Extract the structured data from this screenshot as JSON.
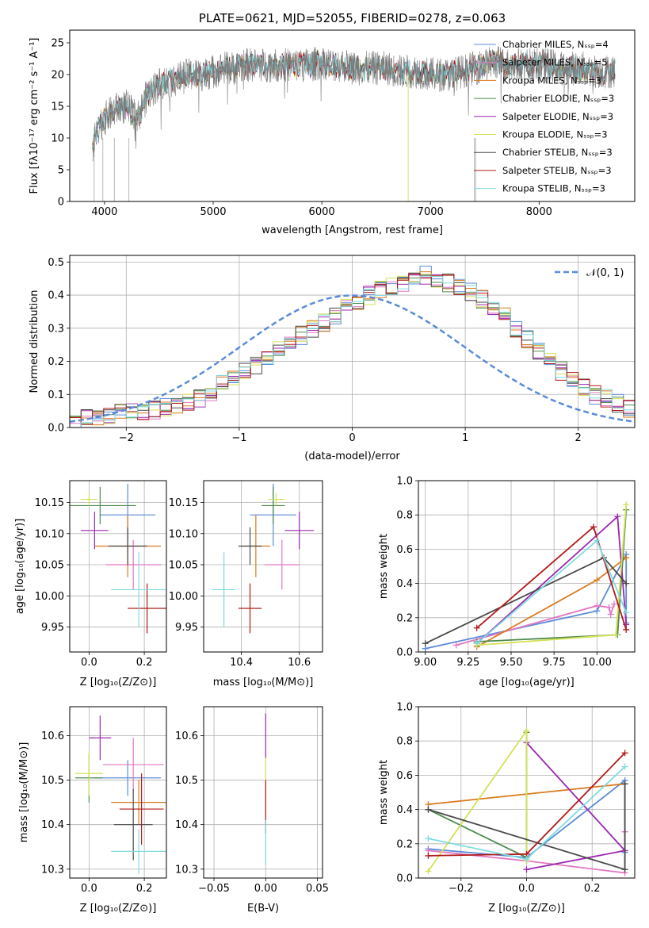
{
  "chart_data": [
    {
      "type": "line",
      "title": "PLATE=0621, MJD=52055, FIBERID=0278, z=0.063",
      "xlabel": "wavelength [Angstrom, rest frame]",
      "ylabel": "Flux [fλ10⁻¹⁷ erg cm⁻² s⁻¹ A⁻¹]",
      "xlim": [
        3680,
        8880
      ],
      "ylim": [
        0,
        27
      ],
      "xticks": [
        "4000",
        "5000",
        "6000",
        "7000",
        "8000"
      ],
      "yticks": [
        "0",
        "5",
        "10",
        "15",
        "20",
        "25"
      ],
      "legend_location": "upper right",
      "series": [
        {
          "name": "Chabrier MILES, N_SSP=4",
          "color": "#5b8bd9"
        },
        {
          "name": "Salpeter MILES, N_SSP=5",
          "color": "#e377c2"
        },
        {
          "name": "Kroupa MILES, N_SSP=3",
          "color": "#d97a1c"
        },
        {
          "name": "Chabrier ELODIE, N_SSP=3",
          "color": "#4e8a4e"
        },
        {
          "name": "Salpeter ELODIE, N_SSP=3",
          "color": "#9b27b0"
        },
        {
          "name": "Kroupa ELODIE, N_SSP=3",
          "color": "#d4e157"
        },
        {
          "name": "Chabrier STELIB, N_SSP=3",
          "color": "#4a4a4a"
        },
        {
          "name": "Salpeter STELIB, N_SSP=3",
          "color": "#b21a1a"
        },
        {
          "name": "Kroupa STELIB, N_SSP=3",
          "color": "#7fdbe0"
        }
      ],
      "data_color": "#7a7a7a",
      "continuum": [
        [
          3880,
          8
        ],
        [
          3950,
          12
        ],
        [
          4000,
          13
        ],
        [
          4100,
          14.5
        ],
        [
          4200,
          15
        ],
        [
          4300,
          13
        ],
        [
          4400,
          17
        ],
        [
          4500,
          18.5
        ],
        [
          4600,
          19
        ],
        [
          4700,
          19.5
        ],
        [
          4800,
          20
        ],
        [
          4900,
          20
        ],
        [
          5000,
          20.5
        ],
        [
          5100,
          21
        ],
        [
          5200,
          21
        ],
        [
          5300,
          21.5
        ],
        [
          5400,
          21.5
        ],
        [
          5500,
          21.5
        ],
        [
          5600,
          21.5
        ],
        [
          5700,
          21.5
        ],
        [
          5800,
          21.5
        ],
        [
          5900,
          21.5
        ],
        [
          6000,
          22
        ],
        [
          6100,
          21.5
        ],
        [
          6200,
          21.5
        ],
        [
          6300,
          21
        ],
        [
          6400,
          21
        ],
        [
          6500,
          21
        ],
        [
          6600,
          21
        ],
        [
          6700,
          20.5
        ],
        [
          6800,
          20.5
        ],
        [
          6900,
          20.5
        ],
        [
          7000,
          20
        ],
        [
          7100,
          20
        ],
        [
          7200,
          20
        ],
        [
          7300,
          20.5
        ],
        [
          7400,
          21
        ],
        [
          7500,
          21.5
        ],
        [
          7600,
          22
        ],
        [
          7700,
          21.5
        ],
        [
          7800,
          21.5
        ],
        [
          7900,
          21.5
        ],
        [
          8000,
          21.5
        ],
        [
          8100,
          21.5
        ],
        [
          8200,
          21
        ],
        [
          8300,
          21
        ],
        [
          8400,
          21
        ],
        [
          8500,
          20.5
        ],
        [
          8600,
          20.5
        ],
        [
          8700,
          20.5
        ]
      ]
    },
    {
      "type": "bar",
      "xlabel": "(data-model)/error",
      "ylabel": "Normed distribution",
      "xlim": [
        -2.5,
        2.5
      ],
      "ylim": [
        0,
        0.52
      ],
      "xticks": [
        "−2",
        "−1",
        "0",
        "1",
        "2"
      ],
      "yticks": [
        "0.0",
        "0.1",
        "0.2",
        "0.3",
        "0.4",
        "0.5"
      ],
      "bin_width": 0.1,
      "bins_from": -2.5,
      "reference_curve": {
        "name": "𝒩(0, 1)",
        "color": "#5b8bd9",
        "style": "dashed"
      },
      "base_hist": [
        0.02,
        0.03,
        0.03,
        0.04,
        0.04,
        0.05,
        0.05,
        0.05,
        0.06,
        0.07,
        0.08,
        0.09,
        0.11,
        0.13,
        0.15,
        0.17,
        0.19,
        0.22,
        0.24,
        0.26,
        0.28,
        0.3,
        0.32,
        0.34,
        0.36,
        0.38,
        0.4,
        0.42,
        0.43,
        0.44,
        0.45,
        0.46,
        0.45,
        0.44,
        0.43,
        0.41,
        0.39,
        0.36,
        0.34,
        0.3,
        0.27,
        0.23,
        0.2,
        0.17,
        0.14,
        0.12,
        0.1,
        0.09,
        0.07,
        0.06,
        0.05,
        0.04,
        0.03,
        0.03,
        0.02
      ]
    },
    {
      "type": "scatter",
      "xlabel": "Z [log₁₀(Z/Z⊙)]",
      "ylabel": "age  [log₁₀(age/yr)]",
      "xlim": [
        -0.07,
        0.28
      ],
      "ylim": [
        9.91,
        10.185
      ],
      "xticks": [
        "0.0",
        "0.2"
      ],
      "yticks": [
        "9.95",
        "10.00",
        "10.05",
        "10.10",
        "10.15"
      ],
      "points": [
        {
          "x": 0.14,
          "y": 10.13,
          "xerr": 0.1,
          "yerr": 0.05,
          "color": "#5b8bd9"
        },
        {
          "x": 0.16,
          "y": 10.05,
          "xerr": 0.1,
          "yerr": 0.04,
          "color": "#e377c2"
        },
        {
          "x": 0.14,
          "y": 10.08,
          "xerr": 0.12,
          "yerr": 0.05,
          "color": "#d97a1c"
        },
        {
          "x": 0.04,
          "y": 10.145,
          "xerr": 0.13,
          "yerr": 0.03,
          "color": "#4e8a4e"
        },
        {
          "x": 0.02,
          "y": 10.105,
          "xerr": 0.05,
          "yerr": 0.03,
          "color": "#9b27b0"
        },
        {
          "x": 0.0,
          "y": 10.155,
          "xerr": 0.03,
          "yerr": 0.01,
          "color": "#d4e157"
        },
        {
          "x": 0.14,
          "y": 10.08,
          "xerr": 0.07,
          "yerr": 0.03,
          "color": "#4a4a4a"
        },
        {
          "x": 0.21,
          "y": 9.98,
          "xerr": 0.07,
          "yerr": 0.04,
          "color": "#b21a1a"
        },
        {
          "x": 0.18,
          "y": 10.01,
          "xerr": 0.1,
          "yerr": 0.06,
          "color": "#7fdbe0"
        }
      ]
    },
    {
      "type": "scatter",
      "xlabel": "mass [log₁₀(M/M⊙)]",
      "ylabel": "",
      "xlim": [
        10.27,
        10.68
      ],
      "ylim": [
        9.91,
        10.185
      ],
      "xticks": [
        "10.4",
        "10.6"
      ],
      "yticks": [
        "9.95",
        "10.00",
        "10.05",
        "10.10",
        "10.15"
      ],
      "points": [
        {
          "x": 10.51,
          "y": 10.13,
          "xerr": 0.08,
          "yerr": 0.05,
          "color": "#5b8bd9"
        },
        {
          "x": 10.54,
          "y": 10.05,
          "xerr": 0.06,
          "yerr": 0.04,
          "color": "#e377c2"
        },
        {
          "x": 10.45,
          "y": 10.08,
          "xerr": 0.05,
          "yerr": 0.05,
          "color": "#d97a1c"
        },
        {
          "x": 10.51,
          "y": 10.145,
          "xerr": 0.04,
          "yerr": 0.03,
          "color": "#4e8a4e"
        },
        {
          "x": 10.6,
          "y": 10.105,
          "xerr": 0.05,
          "yerr": 0.03,
          "color": "#9b27b0"
        },
        {
          "x": 10.52,
          "y": 10.155,
          "xerr": 0.03,
          "yerr": 0.01,
          "color": "#d4e157"
        },
        {
          "x": 10.43,
          "y": 10.08,
          "xerr": 0.04,
          "yerr": 0.03,
          "color": "#4a4a4a"
        },
        {
          "x": 10.43,
          "y": 9.98,
          "xerr": 0.04,
          "yerr": 0.04,
          "color": "#b21a1a"
        },
        {
          "x": 10.34,
          "y": 10.01,
          "xerr": 0.04,
          "yerr": 0.06,
          "color": "#7fdbe0"
        }
      ]
    },
    {
      "type": "line",
      "xlabel": "age  [log₁₀(age/yr)]",
      "ylabel": "mass weight",
      "xlim": [
        8.96,
        10.22
      ],
      "ylim": [
        0,
        1
      ],
      "xticks": [
        "9.00",
        "9.25",
        "9.50",
        "9.75",
        "10.00"
      ],
      "yticks": [
        "0.0",
        "0.2",
        "0.4",
        "0.6",
        "0.8",
        "1.0"
      ],
      "lines": [
        {
          "color": "#5b8bd9",
          "pts": [
            [
              9.0,
              0.02
            ],
            [
              10.0,
              0.24
            ],
            [
              10.17,
              0.57
            ],
            [
              10.17,
              0.17
            ]
          ]
        },
        {
          "color": "#e377c2",
          "pts": [
            [
              9.18,
              0.04
            ],
            [
              10.0,
              0.27
            ],
            [
              10.07,
              0.26
            ],
            [
              10.08,
              0.22
            ],
            [
              10.1,
              0.28
            ]
          ]
        },
        {
          "color": "#d97a1c",
          "pts": [
            [
              9.3,
              0.03
            ],
            [
              10.0,
              0.42
            ],
            [
              10.17,
              0.55
            ]
          ]
        },
        {
          "color": "#4e8a4e",
          "pts": [
            [
              9.3,
              0.06
            ],
            [
              10.12,
              0.1
            ],
            [
              10.17,
              0.83
            ]
          ]
        },
        {
          "color": "#9b27b0",
          "pts": [
            [
              9.3,
              0.05
            ],
            [
              10.12,
              0.79
            ],
            [
              10.17,
              0.16
            ]
          ]
        },
        {
          "color": "#d4e157",
          "pts": [
            [
              9.3,
              0.04
            ],
            [
              10.11,
              0.1
            ],
            [
              10.17,
              0.86
            ]
          ]
        },
        {
          "color": "#4a4a4a",
          "pts": [
            [
              9.0,
              0.05
            ],
            [
              10.04,
              0.55
            ],
            [
              10.17,
              0.4
            ]
          ]
        },
        {
          "color": "#b21a1a",
          "pts": [
            [
              9.3,
              0.14
            ],
            [
              9.98,
              0.73
            ],
            [
              10.17,
              0.13
            ]
          ]
        },
        {
          "color": "#7fdbe0",
          "pts": [
            [
              9.3,
              0.05
            ],
            [
              10.0,
              0.65
            ],
            [
              10.17,
              0.23
            ]
          ]
        }
      ]
    },
    {
      "type": "scatter",
      "xlabel": "Z [log₁₀(Z/Z⊙)]",
      "ylabel": "mass [log₁₀(M/M⊙)]",
      "xlim": [
        -0.07,
        0.28
      ],
      "ylim": [
        10.28,
        10.665
      ],
      "xticks": [
        "0.0",
        "0.2"
      ],
      "yticks": [
        "10.3",
        "10.4",
        "10.5",
        "10.6"
      ],
      "points": [
        {
          "x": 0.14,
          "y": 10.505,
          "xerr": 0.12,
          "yerr": 0.04,
          "color": "#5b8bd9"
        },
        {
          "x": 0.16,
          "y": 10.535,
          "xerr": 0.11,
          "yerr": 0.06,
          "color": "#e377c2"
        },
        {
          "x": 0.18,
          "y": 10.45,
          "xerr": 0.1,
          "yerr": 0.05,
          "color": "#d97a1c"
        },
        {
          "x": 0.0,
          "y": 10.505,
          "xerr": 0.05,
          "yerr": 0.055,
          "color": "#4e8a4e"
        },
        {
          "x": 0.04,
          "y": 10.595,
          "xerr": 0.04,
          "yerr": 0.05,
          "color": "#9b27b0"
        },
        {
          "x": 0.0,
          "y": 10.515,
          "xerr": 0.05,
          "yerr": 0.05,
          "color": "#d4e157"
        },
        {
          "x": 0.16,
          "y": 10.4,
          "xerr": 0.07,
          "yerr": 0.08,
          "color": "#4a4a4a"
        },
        {
          "x": 0.19,
          "y": 10.435,
          "xerr": 0.08,
          "yerr": 0.08,
          "color": "#b21a1a"
        },
        {
          "x": 0.18,
          "y": 10.34,
          "xerr": 0.1,
          "yerr": 0.05,
          "color": "#7fdbe0"
        }
      ]
    },
    {
      "type": "scatter",
      "xlabel": "E(B-V)",
      "ylabel": "",
      "xlim": [
        -0.06,
        0.055
      ],
      "ylim": [
        10.28,
        10.665
      ],
      "xticks": [
        "−0.05",
        "0.00",
        "0.05"
      ],
      "yticks": [
        "10.3",
        "10.4",
        "10.5",
        "10.6"
      ],
      "points": [
        {
          "x": 0.0,
          "y": 10.6,
          "yerr": 0.05,
          "color": "#9b27b0"
        },
        {
          "x": 0.0,
          "y": 10.5,
          "yerr": 0.05,
          "color": "#d4e157"
        },
        {
          "x": 0.0,
          "y": 10.44,
          "yerr": 0.06,
          "color": "#b21a1a"
        },
        {
          "x": 0.0,
          "y": 10.36,
          "yerr": 0.05,
          "color": "#7fdbe0"
        }
      ]
    },
    {
      "type": "line",
      "xlabel": "Z [log₁₀(Z/Z⊙)]",
      "ylabel": "mass weight",
      "xlim": [
        -0.33,
        0.33
      ],
      "ylim": [
        0,
        1
      ],
      "xticks": [
        "−0.2",
        "0.0",
        "0.2"
      ],
      "yticks": [
        "0.0",
        "0.2",
        "0.4",
        "0.6",
        "0.8",
        "1.0"
      ],
      "lines": [
        {
          "color": "#5b8bd9",
          "pts": [
            [
              -0.3,
              0.17
            ],
            [
              0.0,
              0.12
            ],
            [
              0.3,
              0.57
            ],
            [
              0.3,
              0.15
            ]
          ]
        },
        {
          "color": "#e377c2",
          "pts": [
            [
              -0.3,
              0.16
            ],
            [
              0.0,
              0.1
            ],
            [
              0.3,
              0.03
            ],
            [
              0.3,
              0.27
            ]
          ]
        },
        {
          "color": "#d97a1c",
          "pts": [
            [
              -0.3,
              0.43
            ],
            [
              0.3,
              0.55
            ]
          ]
        },
        {
          "color": "#4e8a4e",
          "pts": [
            [
              -0.3,
              0.4
            ],
            [
              0.0,
              0.12
            ],
            [
              0.0,
              0.85
            ]
          ]
        },
        {
          "color": "#9b27b0",
          "pts": [
            [
              0.0,
              0.05
            ],
            [
              0.3,
              0.16
            ],
            [
              0.0,
              0.79
            ]
          ]
        },
        {
          "color": "#d4e157",
          "pts": [
            [
              -0.3,
              0.04
            ],
            [
              0.0,
              0.86
            ],
            [
              0.0,
              0.1
            ]
          ]
        },
        {
          "color": "#4a4a4a",
          "pts": [
            [
              -0.3,
              0.4
            ],
            [
              0.3,
              0.05
            ],
            [
              0.3,
              0.55
            ]
          ]
        },
        {
          "color": "#b21a1a",
          "pts": [
            [
              -0.3,
              0.13
            ],
            [
              0.0,
              0.14
            ],
            [
              0.3,
              0.73
            ]
          ]
        },
        {
          "color": "#7fdbe0",
          "pts": [
            [
              -0.3,
              0.23
            ],
            [
              0.0,
              0.11
            ],
            [
              0.3,
              0.65
            ]
          ]
        }
      ]
    }
  ]
}
